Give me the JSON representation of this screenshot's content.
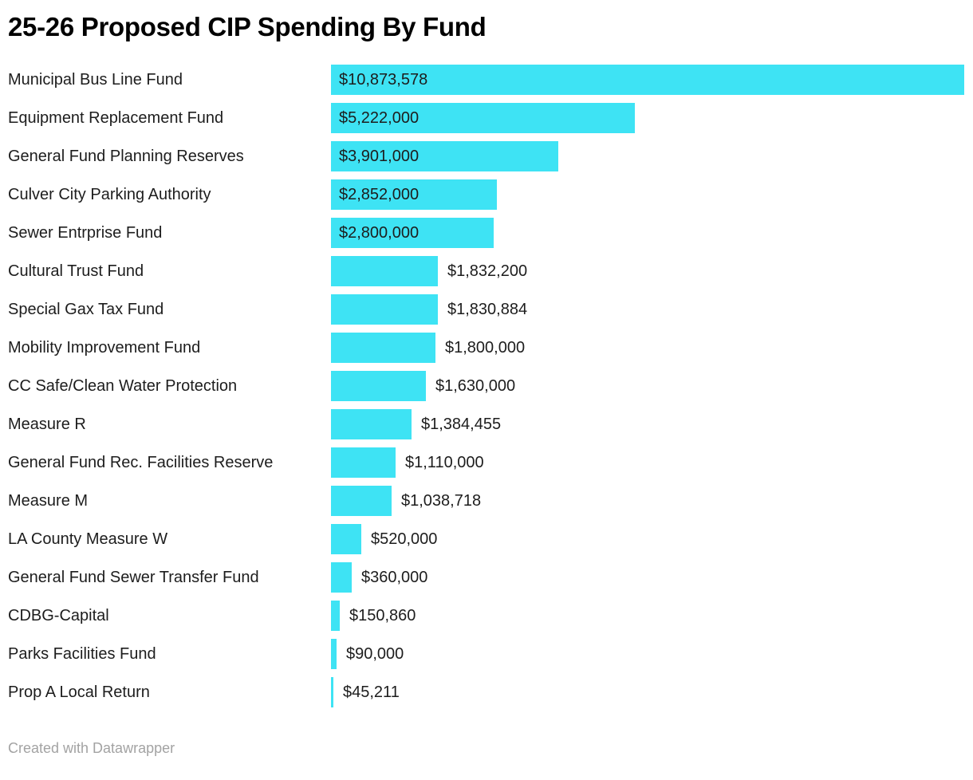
{
  "title": "25-26 Proposed CIP Spending By Fund",
  "footer": {
    "credit": "Created with Datawrapper"
  },
  "colors": {
    "bar": "#3ee3f4",
    "label_text": "#1d1d1d",
    "title_text": "#000000",
    "credit_text": "#a3a3a3",
    "background": "#ffffff"
  },
  "chart_data": {
    "type": "bar",
    "orientation": "horizontal",
    "title": "25-26 Proposed CIP Spending By Fund",
    "xlabel": "",
    "ylabel": "",
    "xlim": [
      0,
      10873578
    ],
    "grid": false,
    "legend": "none",
    "bar_color": "#3ee3f4",
    "categories": [
      "Municipal Bus Line Fund",
      "Equipment Replacement Fund",
      "General Fund Planning Reserves",
      "Culver City Parking Authority",
      "Sewer Entrprise Fund",
      "Cultural Trust Fund",
      "Special Gax Tax Fund",
      "Mobility Improvement Fund",
      "CC Safe/Clean Water Protection",
      "Measure R",
      "General Fund Rec. Facilities Reserve",
      "Measure M",
      "LA County Measure W",
      "General Fund Sewer Transfer Fund",
      "CDBG-Capital",
      "Parks Facilities Fund",
      "Prop A Local Return"
    ],
    "values": [
      10873578,
      5222000,
      3901000,
      2852000,
      2800000,
      1832200,
      1830884,
      1800000,
      1630000,
      1384455,
      1110000,
      1038718,
      520000,
      360000,
      150860,
      90000,
      45211
    ],
    "value_labels": [
      "$10,873,578",
      "$5,222,000",
      "$3,901,000",
      "$2,852,000",
      "$2,800,000",
      "$1,832,200",
      "$1,830,884",
      "$1,800,000",
      "$1,630,000",
      "$1,384,455",
      "$1,110,000",
      "$1,038,718",
      "$520,000",
      "$360,000",
      "$150,860",
      "$90,000",
      "$45,211"
    ]
  }
}
